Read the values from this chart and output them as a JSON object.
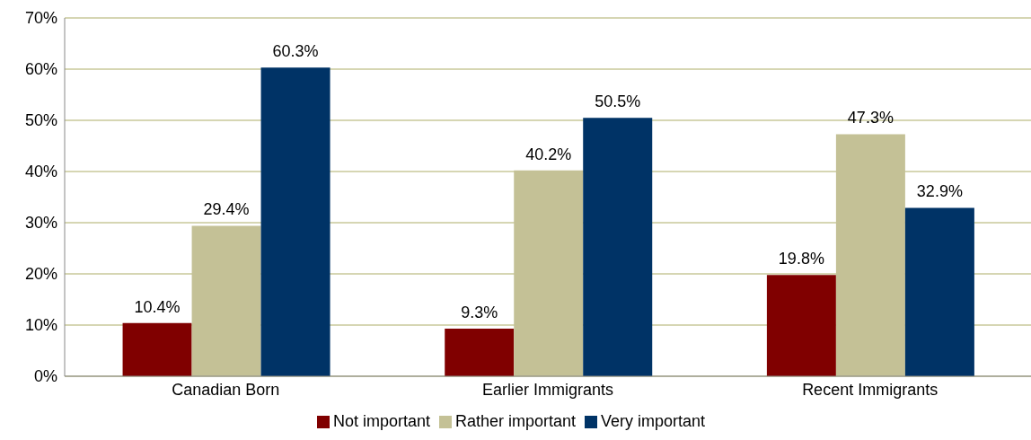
{
  "chart_data": {
    "type": "bar",
    "categories": [
      "Canadian Born",
      "Earlier Immigrants",
      "Recent Immigrants"
    ],
    "series": [
      {
        "name": "Not important",
        "color": "#800000",
        "values": [
          10.4,
          9.3,
          19.8
        ],
        "value_labels": [
          "10.4%",
          "9.3%",
          "19.8%"
        ]
      },
      {
        "name": "Rather important",
        "color": "#c4c196",
        "values": [
          29.4,
          40.2,
          47.3
        ],
        "value_labels": [
          "29.4%",
          "40.2%",
          "47.3%"
        ]
      },
      {
        "name": "Very important",
        "color": "#003366",
        "values": [
          60.3,
          50.5,
          32.9
        ],
        "value_labels": [
          "60.3%",
          "50.5%",
          "32.9%"
        ]
      }
    ],
    "ylim": [
      0,
      70
    ],
    "yticks": [
      {
        "value": 0,
        "label": "0%"
      },
      {
        "value": 10,
        "label": "10%"
      },
      {
        "value": 20,
        "label": "20%"
      },
      {
        "value": 30,
        "label": "30%"
      },
      {
        "value": 40,
        "label": "40%"
      },
      {
        "value": 50,
        "label": "50%"
      },
      {
        "value": 60,
        "label": "60%"
      },
      {
        "value": 70,
        "label": "70%"
      }
    ],
    "grid": "y",
    "legend": "bottom"
  }
}
